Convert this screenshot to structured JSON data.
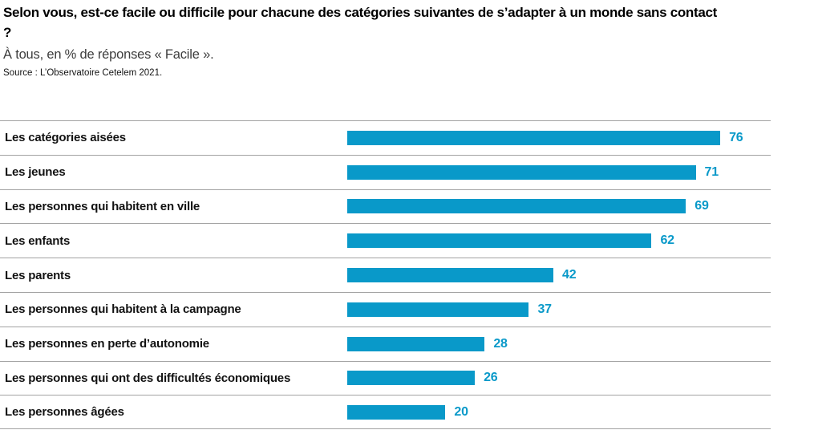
{
  "header": {
    "title": "Selon vous, est-ce facile ou difficile pour chacune des catégories suivantes de s’adapter à un monde sans contact ?",
    "subtitle": "À tous, en % de réponses « Facile ».",
    "source": "Source : L’Observatoire Cetelem 2021."
  },
  "chart_data": {
    "type": "bar",
    "orientation": "horizontal",
    "title": "Selon vous, est-ce facile ou difficile pour chacune des catégories suivantes de s’adapter à un monde sans contact ?",
    "subtitle": "À tous, en % de réponses « Facile ».",
    "source": "Source : L’Observatoire Cetelem 2021.",
    "unit": "%",
    "categories": [
      "Les catégories aisées",
      "Les jeunes",
      "Les personnes qui habitent en ville",
      "Les enfants",
      "Les parents",
      "Les personnes qui habitent à la campagne",
      "Les personnes en perte d’autonomie",
      "Les personnes qui ont des difficultés économiques",
      "Les personnes âgées"
    ],
    "values": [
      76,
      71,
      69,
      62,
      42,
      37,
      28,
      26,
      20
    ],
    "xlim": [
      0,
      86
    ],
    "grid": false,
    "legend": "none",
    "bar_color": "#0999c9",
    "value_label_color": "#0999c9",
    "separator_color": "#a3a3a3"
  }
}
